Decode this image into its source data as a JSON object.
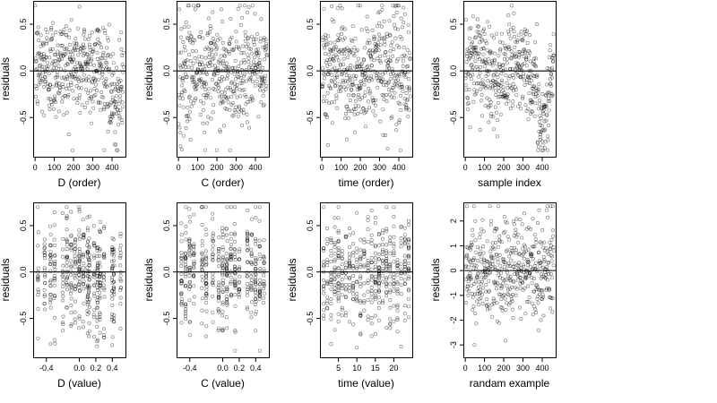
{
  "figure": {
    "background": "#ffffff",
    "point_color": "#000000"
  },
  "chart_data": [
    {
      "type": "scatter",
      "xlabel": "D (order)",
      "ylabel": "residuals",
      "xlim": [
        -10,
        470
      ],
      "ylim": [
        -0.92,
        0.75
      ],
      "xticks": [
        0,
        100,
        200,
        300,
        400
      ],
      "xtick_labels": [
        "0",
        "100",
        "200",
        "300",
        "400"
      ],
      "yticks": [
        -0.5,
        0.0,
        0.5
      ],
      "ytick_labels": [
        "-0.5",
        "0.0",
        "0.5"
      ],
      "hline": 0,
      "n_points": 460,
      "x_distribution": "sample order 1..460 (one point per sample)",
      "y_range_observed": [
        -0.85,
        0.7
      ],
      "pattern": "roughly symmetric band about 0; downward dip near x=390-450"
    },
    {
      "type": "scatter",
      "xlabel": "C (order)",
      "ylabel": "residuals",
      "xlim": [
        -10,
        470
      ],
      "ylim": [
        -0.92,
        0.75
      ],
      "xticks": [
        0,
        100,
        200,
        300,
        400
      ],
      "xtick_labels": [
        "0",
        "100",
        "200",
        "300",
        "400"
      ],
      "yticks": [
        -0.5,
        0.0,
        0.5
      ],
      "ytick_labels": [
        "-0.5",
        "0.0",
        "0.5"
      ],
      "hline": 0,
      "n_points": 460,
      "x_distribution": "sample order 1..460",
      "y_range_observed": [
        -0.85,
        0.7
      ],
      "pattern": "uniform band about 0, no trend"
    },
    {
      "type": "scatter",
      "xlabel": "time (order)",
      "ylabel": "residuals",
      "xlim": [
        -10,
        470
      ],
      "ylim": [
        -0.92,
        0.75
      ],
      "xticks": [
        0,
        100,
        200,
        300,
        400
      ],
      "xtick_labels": [
        "0",
        "100",
        "200",
        "300",
        "400"
      ],
      "yticks": [
        -0.5,
        0.0,
        0.5
      ],
      "ytick_labels": [
        "-0.5",
        "0.0",
        "0.5"
      ],
      "hline": 0,
      "n_points": 460,
      "x_distribution": "sample order 1..460",
      "y_range_observed": [
        -0.85,
        0.7
      ],
      "pattern": "band about 0, slight wave"
    },
    {
      "type": "scatter",
      "xlabel": "sample index",
      "ylabel": "residuals",
      "xlim": [
        -10,
        470
      ],
      "ylim": [
        -0.92,
        0.75
      ],
      "xticks": [
        0,
        100,
        200,
        300,
        400
      ],
      "xtick_labels": [
        "0",
        "100",
        "200",
        "300",
        "400"
      ],
      "yticks": [
        -0.5,
        0.0,
        0.5
      ],
      "ytick_labels": [
        "-0.5",
        "0.0",
        "0.5"
      ],
      "hline": 0,
      "n_points": 460,
      "x_distribution": "sample index 1..460",
      "y_range_observed": [
        -0.85,
        0.7
      ],
      "pattern": "wavy band with strong downward dip near x=380-430"
    },
    {
      "type": "scatter",
      "xlabel": "D (value)",
      "ylabel": "residuals",
      "xlim": [
        -0.56,
        0.56
      ],
      "ylim": [
        -0.92,
        0.75
      ],
      "xticks": [
        -0.4,
        0.0,
        0.2,
        0.4
      ],
      "xtick_labels": [
        "-0.4",
        "0.0",
        "0.2",
        "0.4"
      ],
      "yticks": [
        -0.5,
        0.0,
        0.5
      ],
      "ytick_labels": [
        "-0.5",
        "0.0",
        "0.5"
      ],
      "hline": 0,
      "n_points": 460,
      "x_distribution": "design values clustered in columns between -0.5 and 0.5",
      "y_range_observed": [
        -0.85,
        0.7
      ],
      "pattern": "vertical columns; lower tail near x=0.25"
    },
    {
      "type": "scatter",
      "xlabel": "C (value)",
      "ylabel": "residuals",
      "xlim": [
        -0.56,
        0.56
      ],
      "ylim": [
        -0.92,
        0.75
      ],
      "xticks": [
        -0.4,
        0.0,
        0.2,
        0.4
      ],
      "xtick_labels": [
        "-0.4",
        "0.0",
        "0.2",
        "0.4"
      ],
      "yticks": [
        -0.5,
        0.0,
        0.5
      ],
      "ytick_labels": [
        "-0.5",
        "0.0",
        "0.5"
      ],
      "hline": 0,
      "n_points": 460,
      "x_distribution": "design values in discrete columns between -0.5 and 0.5",
      "y_range_observed": [
        -0.85,
        0.7
      ],
      "pattern": "vertical columns, symmetric about 0"
    },
    {
      "type": "scatter",
      "xlabel": "time (value)",
      "ylabel": "residuals",
      "xlim": [
        0,
        25
      ],
      "ylim": [
        -0.92,
        0.75
      ],
      "xticks": [
        5,
        10,
        15,
        20
      ],
      "xtick_labels": [
        "5",
        "10",
        "15",
        "20"
      ],
      "yticks": [
        -0.5,
        0.0,
        0.5
      ],
      "ytick_labels": [
        "-0.5",
        "0.0",
        "0.5"
      ],
      "hline": 0,
      "n_points": 460,
      "x_distribution": "integer time values 1..24",
      "y_range_observed": [
        -0.85,
        0.7
      ],
      "pattern": "vertical columns at each integer time"
    },
    {
      "type": "scatter",
      "xlabel": "randam example",
      "ylabel": "residuals",
      "xlim": [
        -10,
        470
      ],
      "ylim": [
        -3.5,
        2.75
      ],
      "xticks": [
        0,
        100,
        200,
        300,
        400
      ],
      "xtick_labels": [
        "0",
        "100",
        "200",
        "300",
        "400"
      ],
      "yticks": [
        -3,
        -2,
        -1,
        0,
        1,
        2
      ],
      "ytick_labels": [
        "-3",
        "-2",
        "-1",
        "0",
        "1",
        "2"
      ],
      "hline": 0,
      "n_points": 460,
      "x_distribution": "index 1..460",
      "y_range_observed": [
        -3.3,
        2.6
      ],
      "pattern": "random normal noise, no structure"
    }
  ]
}
